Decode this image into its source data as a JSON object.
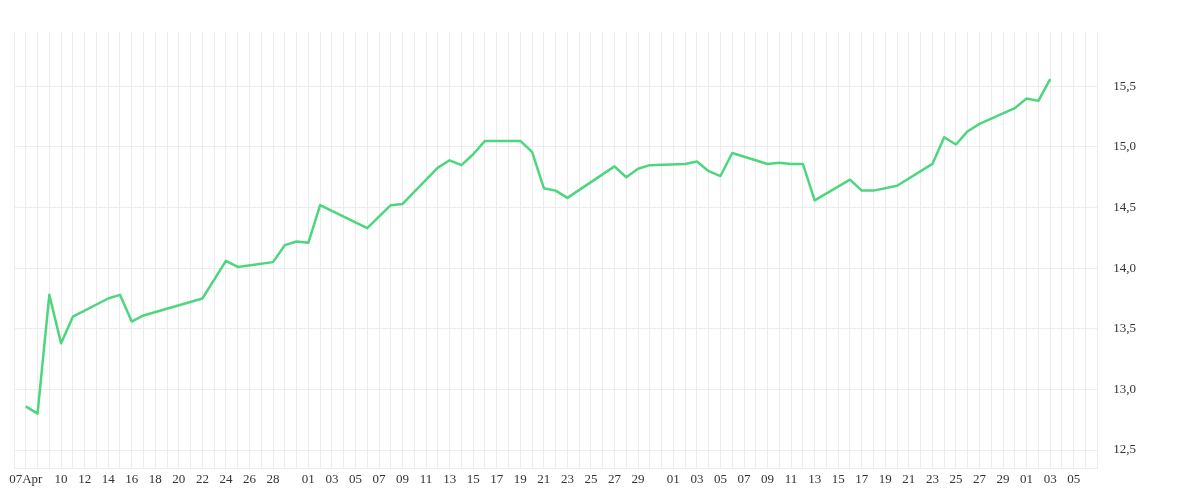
{
  "chart_data": {
    "type": "line",
    "x": [
      "--04-07",
      "--04-08",
      "--04-09",
      "--04-10",
      "--04-11",
      "--04-14",
      "--04-15",
      "--04-16",
      "--04-17",
      "--04-22",
      "--04-24",
      "--04-25",
      "--04-28",
      "--04-29",
      "--04-30",
      "--05-01",
      "--05-02",
      "--05-06",
      "--05-08",
      "--05-09",
      "--05-12",
      "--05-13",
      "--05-14",
      "--05-15",
      "--05-16",
      "--05-19",
      "--05-20",
      "--05-21",
      "--05-22",
      "--05-23",
      "--05-27",
      "--05-28",
      "--05-29",
      "--05-30",
      "--06-02",
      "--06-03",
      "--06-04",
      "--06-05",
      "--06-06",
      "--06-09",
      "--06-10",
      "--06-11",
      "--06-12",
      "--06-13",
      "--06-16",
      "--06-17",
      "--06-18",
      "--06-20",
      "--06-23",
      "--06-24",
      "--06-25",
      "--06-26",
      "--06-27",
      "--06-30",
      "--07-01",
      "--07-02",
      "--07-03"
    ],
    "series": [
      {
        "color": "#4ed67e",
        "values": [
          12.86,
          12.8,
          13.78,
          13.38,
          13.6,
          13.75,
          13.78,
          13.56,
          13.61,
          13.75,
          14.06,
          14.01,
          14.05,
          14.19,
          14.22,
          14.21,
          14.52,
          14.33,
          14.52,
          14.53,
          14.83,
          14.89,
          14.85,
          14.94,
          15.05,
          15.05,
          14.96,
          14.66,
          14.64,
          14.58,
          14.84,
          14.75,
          14.82,
          14.85,
          14.86,
          14.88,
          14.8,
          14.76,
          14.95,
          14.86,
          14.87,
          14.86,
          14.86,
          14.56,
          14.73,
          14.64,
          14.64,
          14.68,
          14.86,
          15.08,
          15.02,
          15.13,
          15.19,
          15.32,
          15.4,
          15.38,
          15.56
        ]
      }
    ],
    "xlim": [
      "--04-06",
      "--07-07"
    ],
    "xticks": [
      {
        "value": "--04-06",
        "label": null
      },
      {
        "value": "--04-07",
        "label": "07Apr"
      },
      {
        "value": "--04-08",
        "label": null
      },
      {
        "value": "--04-09",
        "label": null
      },
      {
        "value": "--04-10",
        "label": "10"
      },
      {
        "value": "--04-11",
        "label": null
      },
      {
        "value": "--04-12",
        "label": "12"
      },
      {
        "value": "--04-13",
        "label": null
      },
      {
        "value": "--04-14",
        "label": "14"
      },
      {
        "value": "--04-15",
        "label": null
      },
      {
        "value": "--04-16",
        "label": "16"
      },
      {
        "value": "--04-17",
        "label": null
      },
      {
        "value": "--04-18",
        "label": "18"
      },
      {
        "value": "--04-19",
        "label": null
      },
      {
        "value": "--04-20",
        "label": "20"
      },
      {
        "value": "--04-21",
        "label": null
      },
      {
        "value": "--04-22",
        "label": "22"
      },
      {
        "value": "--04-23",
        "label": null
      },
      {
        "value": "--04-24",
        "label": "24"
      },
      {
        "value": "--04-25",
        "label": null
      },
      {
        "value": "--04-26",
        "label": "26"
      },
      {
        "value": "--04-27",
        "label": null
      },
      {
        "value": "--04-28",
        "label": "28"
      },
      {
        "value": "--04-29",
        "label": null
      },
      {
        "value": "--04-30",
        "label": null
      },
      {
        "value": "--05-01",
        "label": "01"
      },
      {
        "value": "--05-02",
        "label": null
      },
      {
        "value": "--05-03",
        "label": "03"
      },
      {
        "value": "--05-04",
        "label": null
      },
      {
        "value": "--05-05",
        "label": "05"
      },
      {
        "value": "--05-06",
        "label": null
      },
      {
        "value": "--05-07",
        "label": "07"
      },
      {
        "value": "--05-08",
        "label": null
      },
      {
        "value": "--05-09",
        "label": "09"
      },
      {
        "value": "--05-10",
        "label": null
      },
      {
        "value": "--05-11",
        "label": "11"
      },
      {
        "value": "--05-12",
        "label": null
      },
      {
        "value": "--05-13",
        "label": "13"
      },
      {
        "value": "--05-14",
        "label": null
      },
      {
        "value": "--05-15",
        "label": "15"
      },
      {
        "value": "--05-16",
        "label": null
      },
      {
        "value": "--05-17",
        "label": "17"
      },
      {
        "value": "--05-18",
        "label": null
      },
      {
        "value": "--05-19",
        "label": "19"
      },
      {
        "value": "--05-20",
        "label": null
      },
      {
        "value": "--05-21",
        "label": "21"
      },
      {
        "value": "--05-22",
        "label": null
      },
      {
        "value": "--05-23",
        "label": "23"
      },
      {
        "value": "--05-24",
        "label": null
      },
      {
        "value": "--05-25",
        "label": "25"
      },
      {
        "value": "--05-26",
        "label": null
      },
      {
        "value": "--05-27",
        "label": "27"
      },
      {
        "value": "--05-28",
        "label": null
      },
      {
        "value": "--05-29",
        "label": "29"
      },
      {
        "value": "--05-30",
        "label": null
      },
      {
        "value": "--05-31",
        "label": null
      },
      {
        "value": "--06-01",
        "label": "01"
      },
      {
        "value": "--06-02",
        "label": null
      },
      {
        "value": "--06-03",
        "label": "03"
      },
      {
        "value": "--06-04",
        "label": null
      },
      {
        "value": "--06-05",
        "label": "05"
      },
      {
        "value": "--06-06",
        "label": null
      },
      {
        "value": "--06-07",
        "label": "07"
      },
      {
        "value": "--06-08",
        "label": null
      },
      {
        "value": "--06-09",
        "label": "09"
      },
      {
        "value": "--06-10",
        "label": null
      },
      {
        "value": "--06-11",
        "label": "11"
      },
      {
        "value": "--06-12",
        "label": null
      },
      {
        "value": "--06-13",
        "label": "13"
      },
      {
        "value": "--06-14",
        "label": null
      },
      {
        "value": "--06-15",
        "label": "15"
      },
      {
        "value": "--06-16",
        "label": null
      },
      {
        "value": "--06-17",
        "label": "17"
      },
      {
        "value": "--06-18",
        "label": null
      },
      {
        "value": "--06-19",
        "label": "19"
      },
      {
        "value": "--06-20",
        "label": null
      },
      {
        "value": "--06-21",
        "label": "21"
      },
      {
        "value": "--06-22",
        "label": null
      },
      {
        "value": "--06-23",
        "label": "23"
      },
      {
        "value": "--06-24",
        "label": null
      },
      {
        "value": "--06-25",
        "label": "25"
      },
      {
        "value": "--06-26",
        "label": null
      },
      {
        "value": "--06-27",
        "label": "27"
      },
      {
        "value": "--06-28",
        "label": null
      },
      {
        "value": "--06-29",
        "label": "29"
      },
      {
        "value": "--06-30",
        "label": null
      },
      {
        "value": "--07-01",
        "label": "01"
      },
      {
        "value": "--07-02",
        "label": null
      },
      {
        "value": "--07-03",
        "label": "03"
      },
      {
        "value": "--07-04",
        "label": null
      },
      {
        "value": "--07-05",
        "label": "05"
      },
      {
        "value": "--07-06",
        "label": null
      },
      {
        "value": "--07-07",
        "label": null
      }
    ],
    "ylim": [
      12.35,
      15.95
    ],
    "yticks": [
      {
        "value": 12.5,
        "label": "12,5"
      },
      {
        "value": 13,
        "label": "13,0"
      },
      {
        "value": 13.5,
        "label": "13,5"
      },
      {
        "value": 14,
        "label": "14,0"
      },
      {
        "value": 14.5,
        "label": "14,5"
      },
      {
        "value": 15,
        "label": "15,0"
      },
      {
        "value": 15.5,
        "label": "15,5"
      }
    ],
    "grid": true,
    "legend": false,
    "marker": "none",
    "line_style": "solid"
  }
}
